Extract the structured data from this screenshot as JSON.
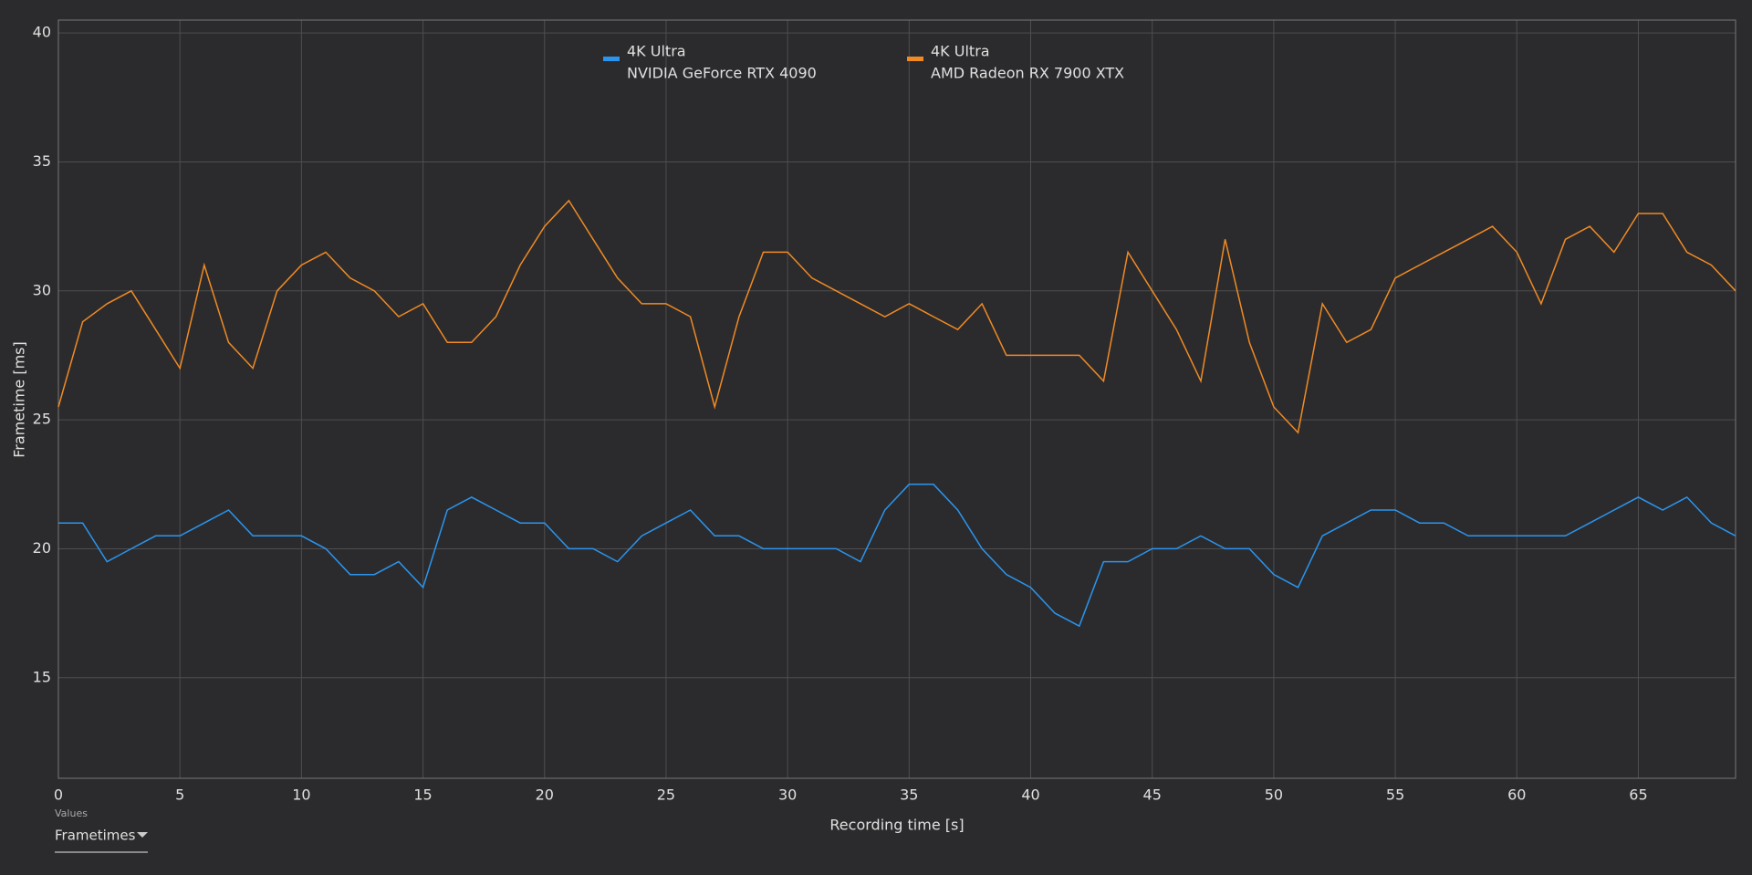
{
  "chart_data": {
    "type": "line",
    "x_label": "Recording time [s]",
    "y_label": "Frametime [ms]",
    "x": [
      0,
      1,
      2,
      3,
      4,
      5,
      6,
      7,
      8,
      9,
      10,
      11,
      12,
      13,
      14,
      15,
      16,
      17,
      18,
      19,
      20,
      21,
      22,
      23,
      24,
      25,
      26,
      27,
      28,
      29,
      30,
      31,
      32,
      33,
      34,
      35,
      36,
      37,
      38,
      39,
      40,
      41,
      42,
      43,
      44,
      45,
      46,
      47,
      48,
      49,
      50,
      51,
      52,
      53,
      54,
      55,
      56,
      57,
      58,
      59,
      60,
      61,
      62,
      63,
      64,
      65,
      66,
      67,
      68,
      69
    ],
    "series": [
      {
        "name": "4K Ultra",
        "device": "NVIDIA GeForce RTX 4090",
        "color": "#2b95ee",
        "values": [
          21,
          21,
          19.5,
          20,
          20.5,
          20.5,
          21,
          21.5,
          20.5,
          20.5,
          20.5,
          20,
          19,
          19,
          19.5,
          18.5,
          21.5,
          22,
          21.5,
          21,
          21,
          20,
          20,
          19.5,
          20.5,
          21,
          21.5,
          20.5,
          20.5,
          20,
          20,
          20,
          20,
          19.5,
          21.5,
          22.5,
          22.5,
          21.5,
          20,
          19,
          18.5,
          17.5,
          17,
          19.5,
          19.5,
          20,
          20,
          20.5,
          20,
          20,
          19,
          18.5,
          20.5,
          21,
          21.5,
          21.5,
          21,
          21,
          20.5,
          20.5,
          20.5,
          20.5,
          20.5,
          21,
          21.5,
          22,
          21.5,
          22,
          21,
          20.5
        ]
      },
      {
        "name": "4K Ultra",
        "device": "AMD Radeon RX 7900 XTX",
        "color": "#f08a24",
        "values": [
          25.5,
          28.8,
          29.5,
          30,
          28.5,
          27,
          31,
          28,
          27,
          30,
          31,
          31.5,
          30.5,
          30,
          29,
          29.5,
          28,
          28,
          29,
          31,
          32.5,
          33.5,
          32,
          30.5,
          29.5,
          29.5,
          29,
          25.5,
          29,
          31.5,
          31.5,
          30.5,
          30,
          29.5,
          29,
          29.5,
          29,
          28.5,
          29.5,
          27.5,
          27.5,
          27.5,
          27.5,
          26.5,
          31.5,
          30,
          28.5,
          26.5,
          32,
          28,
          25.5,
          24.5,
          29.5,
          28,
          28.5,
          30.5,
          31,
          31.5,
          32,
          32.5,
          31.5,
          29.5,
          32,
          32.5,
          31.5,
          33,
          33,
          31.5,
          31,
          30
        ]
      }
    ],
    "xlim": [
      0,
      69
    ],
    "xticks": [
      0,
      5,
      10,
      15,
      20,
      25,
      30,
      35,
      40,
      45,
      50,
      55,
      60,
      65
    ],
    "ylim": [
      11.1,
      40.5
    ],
    "yticks": [
      15,
      20,
      25,
      30,
      35,
      40
    ],
    "grid": true
  },
  "controls": {
    "label": "Values",
    "selected": "Frametimes"
  }
}
